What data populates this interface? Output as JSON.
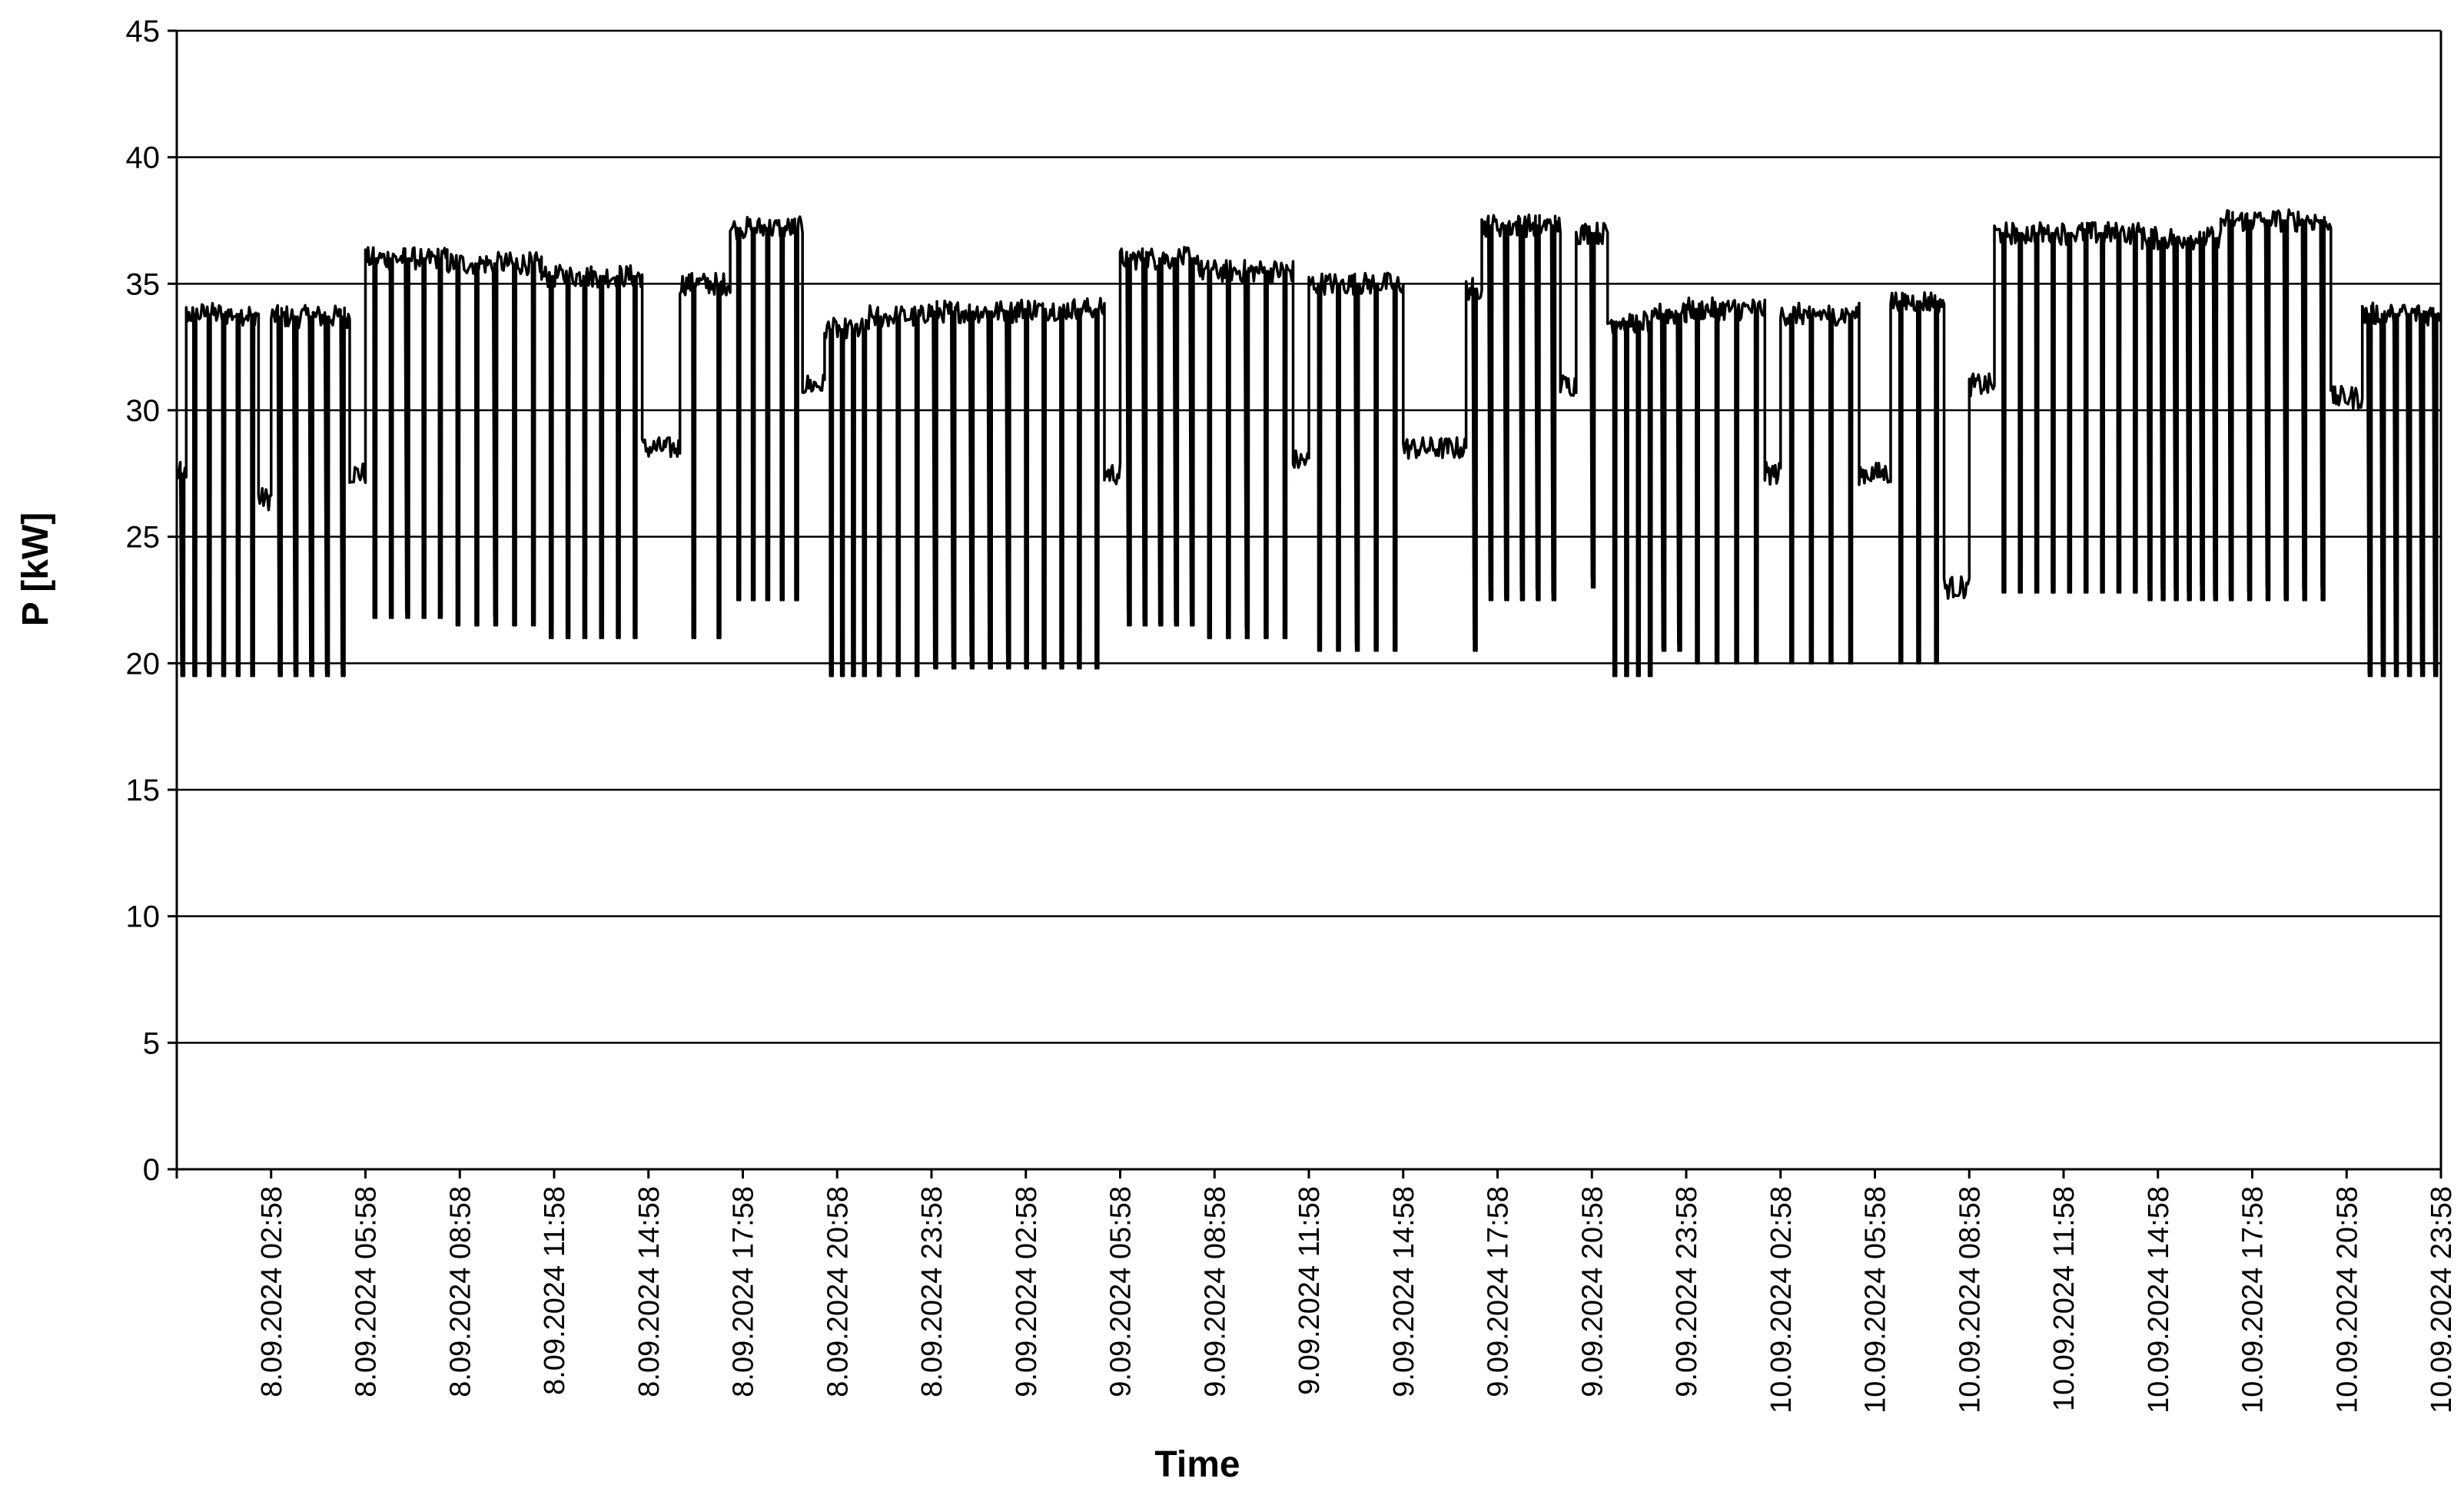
{
  "chart_data": {
    "type": "line",
    "title": "",
    "xlabel": "Time",
    "ylabel": "P [kW]",
    "ylim": [
      0,
      45
    ],
    "yticks": [
      0,
      5,
      10,
      15,
      20,
      25,
      30,
      35,
      40,
      45
    ],
    "grid": "horizontal",
    "legend": "none",
    "x_range_hours": [
      0,
      72
    ],
    "x_tick_labels": [
      "8.09.2024 02:58",
      "8.09.2024 05:58",
      "8.09.2024 08:58",
      "8.09.2024 11:58",
      "8.09.2024 14:58",
      "8.09.2024 17:58",
      "8.09.2024 20:58",
      "8.09.2024 23:58",
      "9.09.2024 02:58",
      "9.09.2024 05:58",
      "9.09.2024 08:58",
      "9.09.2024 11:58",
      "9.09.2024 14:58",
      "9.09.2024 17:58",
      "9.09.2024 20:58",
      "9.09.2024 23:58",
      "10.09.2024 02:58",
      "10.09.2024 05:58",
      "10.09.2024 08:58",
      "10.09.2024 11:58",
      "10.09.2024 14:58",
      "10.09.2024 17:58",
      "10.09.2024 20:58",
      "10.09.2024 23:58"
    ],
    "series": [
      {
        "color": "#000000",
        "segments": [
          {
            "t0": 0.0,
            "t1": 0.3,
            "base": 27.5,
            "low": 19.5,
            "pulses": 1
          },
          {
            "t0": 0.3,
            "t1": 2.6,
            "base": 33.8,
            "low": 19.5,
            "pulses": 5
          },
          {
            "t0": 2.6,
            "t1": 3.0,
            "base": 26.5,
            "low": 20.0,
            "pulses": 0
          },
          {
            "t0": 3.0,
            "t1": 5.5,
            "base": 33.7,
            "low": 19.5,
            "pulses": 5
          },
          {
            "t0": 5.5,
            "t1": 6.0,
            "base": 27.5,
            "low": 22.0,
            "pulses": 0
          },
          {
            "t0": 6.0,
            "t1": 8.6,
            "base": 36.0,
            "low": 21.8,
            "pulses": 5
          },
          {
            "t0": 8.6,
            "t1": 11.6,
            "base": 35.8,
            "low": 21.5,
            "pulses": 5
          },
          {
            "t0": 11.6,
            "t1": 14.8,
            "base": 35.3,
            "low": 21.0,
            "pulses": 6
          },
          {
            "t0": 14.8,
            "t1": 16.0,
            "base": 28.5,
            "low": 21.0,
            "pulses": 0
          },
          {
            "t0": 16.0,
            "t1": 17.6,
            "base": 35.0,
            "low": 21.0,
            "pulses": 2
          },
          {
            "t0": 17.6,
            "t1": 19.9,
            "base": 37.2,
            "low": 22.5,
            "pulses": 5
          },
          {
            "t0": 19.9,
            "t1": 20.6,
            "base": 31.0,
            "low": 30.0,
            "pulses": 0
          },
          {
            "t0": 20.6,
            "t1": 22.0,
            "base": 33.2,
            "low": 19.5,
            "pulses": 4
          },
          {
            "t0": 22.0,
            "t1": 23.8,
            "base": 33.7,
            "low": 19.5,
            "pulses": 3
          },
          {
            "t0": 23.8,
            "t1": 26.7,
            "base": 33.9,
            "low": 19.8,
            "pulses": 5
          },
          {
            "t0": 26.7,
            "t1": 29.5,
            "base": 34.0,
            "low": 19.8,
            "pulses": 5
          },
          {
            "t0": 29.5,
            "t1": 30.0,
            "base": 27.5,
            "low": 26.5,
            "pulses": 0
          },
          {
            "t0": 30.0,
            "t1": 32.5,
            "base": 36.0,
            "low": 21.5,
            "pulses": 5
          },
          {
            "t0": 32.5,
            "t1": 35.5,
            "base": 35.5,
            "low": 21.0,
            "pulses": 5
          },
          {
            "t0": 35.5,
            "t1": 36.0,
            "base": 28.0,
            "low": 27.0,
            "pulses": 0
          },
          {
            "t0": 36.0,
            "t1": 39.0,
            "base": 35.0,
            "low": 20.5,
            "pulses": 5
          },
          {
            "t0": 39.0,
            "t1": 41.0,
            "base": 28.5,
            "low": 28.0,
            "pulses": 0
          },
          {
            "t0": 41.0,
            "t1": 41.5,
            "base": 34.8,
            "low": 20.5,
            "pulses": 1
          },
          {
            "t0": 41.5,
            "t1": 44.0,
            "base": 37.3,
            "low": 22.5,
            "pulses": 5
          },
          {
            "t0": 44.0,
            "t1": 44.5,
            "base": 31.0,
            "low": 30.0,
            "pulses": 0
          },
          {
            "t0": 44.5,
            "t1": 45.5,
            "base": 37.0,
            "low": 23.0,
            "pulses": 1
          },
          {
            "t0": 45.5,
            "t1": 47.0,
            "base": 33.5,
            "low": 19.5,
            "pulses": 4
          },
          {
            "t0": 47.0,
            "t1": 48.0,
            "base": 33.8,
            "low": 20.5,
            "pulses": 2
          },
          {
            "t0": 48.0,
            "t1": 50.5,
            "base": 34.0,
            "low": 20.0,
            "pulses": 4
          },
          {
            "t0": 50.5,
            "t1": 51.0,
            "base": 27.5,
            "low": 26.5,
            "pulses": 0
          },
          {
            "t0": 51.0,
            "t1": 53.5,
            "base": 33.8,
            "low": 20.0,
            "pulses": 4
          },
          {
            "t0": 53.5,
            "t1": 54.5,
            "base": 27.5,
            "low": 26.5,
            "pulses": 0
          },
          {
            "t0": 54.5,
            "t1": 56.2,
            "base": 34.3,
            "low": 20.0,
            "pulses": 3
          },
          {
            "t0": 56.2,
            "t1": 57.0,
            "base": 23.0,
            "low": 20.0,
            "pulses": 0
          },
          {
            "t0": 57.0,
            "t1": 57.8,
            "base": 31.0,
            "low": 30.0,
            "pulses": 0
          },
          {
            "t0": 57.8,
            "t1": 62.5,
            "base": 37.0,
            "low": 22.8,
            "pulses": 9
          },
          {
            "t0": 62.5,
            "t1": 65.0,
            "base": 36.8,
            "low": 22.5,
            "pulses": 6
          },
          {
            "t0": 65.0,
            "t1": 68.5,
            "base": 37.5,
            "low": 22.5,
            "pulses": 6
          },
          {
            "t0": 68.5,
            "t1": 69.5,
            "base": 30.5,
            "low": 23.5,
            "pulses": 0
          },
          {
            "t0": 69.5,
            "t1": 72.0,
            "base": 33.8,
            "low": 19.5,
            "pulses": 6
          }
        ]
      }
    ]
  }
}
